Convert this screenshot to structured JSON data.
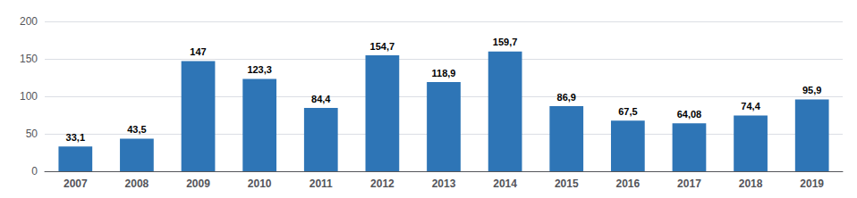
{
  "chart_data": {
    "type": "bar",
    "categories": [
      "2007",
      "2008",
      "2009",
      "2010",
      "2011",
      "2012",
      "2013",
      "2014",
      "2015",
      "2016",
      "2017",
      "2018",
      "2019"
    ],
    "values": [
      33.1,
      43.5,
      147,
      123.3,
      84.4,
      154.7,
      118.9,
      159.7,
      86.9,
      67.5,
      64.08,
      74.4,
      95.9
    ],
    "value_labels": [
      "33,1",
      "43,5",
      "147",
      "123,3",
      "84,4",
      "154,7",
      "118,9",
      "159,7",
      "86,9",
      "67,5",
      "64,08",
      "74,4",
      "95,9"
    ],
    "data_labels": true,
    "color": "#2E75B6",
    "ylim": [
      0,
      200
    ],
    "yticks": [
      0,
      50,
      100,
      150,
      200
    ],
    "grid": true
  }
}
